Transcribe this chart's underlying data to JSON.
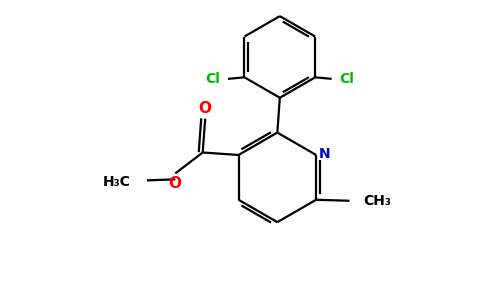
{
  "background_color": "#ffffff",
  "bond_color": "#000000",
  "atom_colors": {
    "N": "#0000cd",
    "O_carbonyl": "#ff0000",
    "O_ester": "#ff0000",
    "Cl": "#00bb00"
  },
  "figsize": [
    4.84,
    3.0
  ],
  "dpi": 100,
  "xlim": [
    0,
    9.68
  ],
  "ylim": [
    0,
    6.0
  ]
}
